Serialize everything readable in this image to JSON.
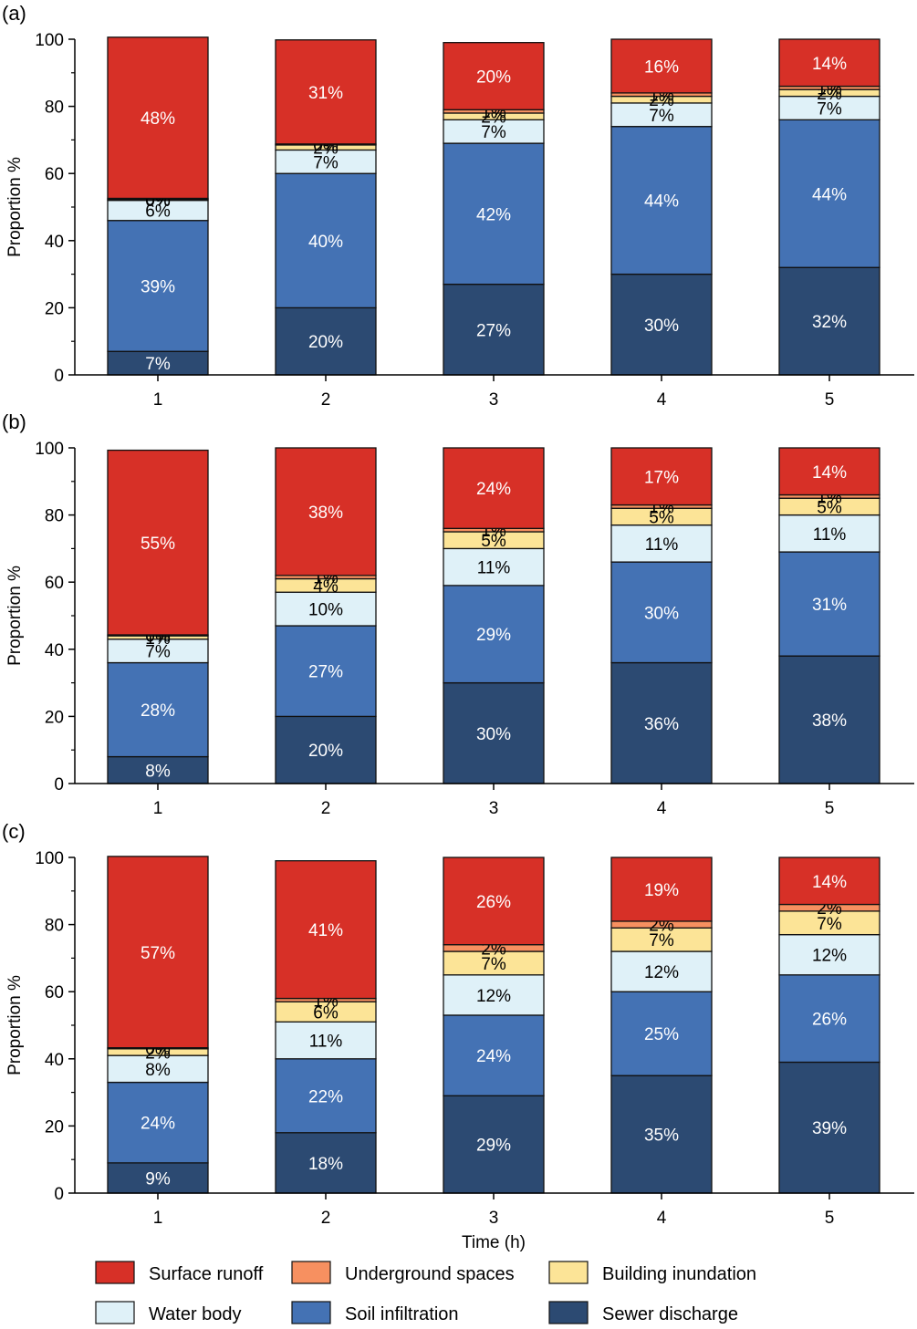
{
  "figure": {
    "xlabel": "Time (h)",
    "ylabel": "Proportion %"
  },
  "series_styles": [
    {
      "name": "Sewer discharge",
      "color": "#2c4a72",
      "label_color": "#ffffff"
    },
    {
      "name": "Soil infiltration",
      "color": "#4472b4",
      "label_color": "#ffffff"
    },
    {
      "name": "Water body",
      "color": "#dff1f8",
      "label_color": "#000000"
    },
    {
      "name": "Building  inundation",
      "color": "#fce497",
      "label_color": "#000000"
    },
    {
      "name": "Underground  spaces",
      "color": "#f79060",
      "label_color": "#000000"
    },
    {
      "name": "Surface runoff",
      "color": "#d73027",
      "label_color": "#ffffff"
    }
  ],
  "legend": {
    "rows": [
      [
        "Surface runoff",
        "Underground  spaces",
        "Building  inundation"
      ],
      [
        "Water body",
        "Soil infiltration",
        "Sewer discharge"
      ]
    ]
  },
  "chart_data": [
    {
      "type": "bar",
      "stacked": true,
      "panel_label": "(a)",
      "categories": [
        "1",
        "2",
        "3",
        "4",
        "5"
      ],
      "ylim": [
        0,
        100
      ],
      "yticks": [
        0,
        20,
        40,
        60,
        80,
        100
      ],
      "series": [
        {
          "name": "Sewer discharge",
          "values": [
            7,
            20,
            27,
            30,
            32
          ],
          "labels": [
            "7%",
            "20%",
            "27%",
            "30%",
            "32%"
          ]
        },
        {
          "name": "Soil infiltration",
          "values": [
            39,
            40,
            42,
            44,
            44
          ],
          "labels": [
            "39%",
            "40%",
            "42%",
            "44%",
            "44%"
          ]
        },
        {
          "name": "Water body",
          "values": [
            6,
            7,
            7,
            7,
            7
          ],
          "labels": [
            "6%",
            "7%",
            "7%",
            "7%",
            "7%"
          ]
        },
        {
          "name": "Building  inundation",
          "values": [
            0.3,
            1.5,
            2,
            2,
            2
          ],
          "labels": [
            "0%",
            "2%",
            "2%",
            "2%",
            "2%"
          ]
        },
        {
          "name": "Underground  spaces",
          "values": [
            0.3,
            0.3,
            1,
            1,
            1
          ],
          "labels": [
            "0%",
            "0%",
            "1%",
            "1%",
            "1%"
          ]
        },
        {
          "name": "Surface runoff",
          "values": [
            48,
            31,
            20,
            16,
            14
          ],
          "labels": [
            "48%",
            "31%",
            "20%",
            "16%",
            "14%"
          ]
        }
      ]
    },
    {
      "type": "bar",
      "stacked": true,
      "panel_label": "(b)",
      "categories": [
        "1",
        "2",
        "3",
        "4",
        "5"
      ],
      "ylim": [
        0,
        100
      ],
      "yticks": [
        0,
        20,
        40,
        60,
        80,
        100
      ],
      "series": [
        {
          "name": "Sewer discharge",
          "values": [
            8,
            20,
            30,
            36,
            38
          ],
          "labels": [
            "8%",
            "20%",
            "30%",
            "36%",
            "38%"
          ]
        },
        {
          "name": "Soil infiltration",
          "values": [
            28,
            27,
            29,
            30,
            31
          ],
          "labels": [
            "28%",
            "27%",
            "29%",
            "30%",
            "31%"
          ]
        },
        {
          "name": "Water body",
          "values": [
            7,
            10,
            11,
            11,
            11
          ],
          "labels": [
            "7%",
            "10%",
            "11%",
            "11%",
            "11%"
          ]
        },
        {
          "name": "Building  inundation",
          "values": [
            1,
            4,
            5,
            5,
            5
          ],
          "labels": [
            "1%",
            "4%",
            "5%",
            "5%",
            "5%"
          ]
        },
        {
          "name": "Underground  spaces",
          "values": [
            0.3,
            1,
            1,
            1,
            1
          ],
          "labels": [
            "0%",
            "1%",
            "1%",
            "1%",
            "1%"
          ]
        },
        {
          "name": "Surface runoff",
          "values": [
            55,
            38,
            24,
            17,
            14
          ],
          "labels": [
            "55%",
            "38%",
            "24%",
            "17%",
            "14%"
          ]
        }
      ]
    },
    {
      "type": "bar",
      "stacked": true,
      "panel_label": "(c)",
      "categories": [
        "1",
        "2",
        "3",
        "4",
        "5"
      ],
      "ylim": [
        0,
        100
      ],
      "yticks": [
        0,
        20,
        40,
        60,
        80,
        100
      ],
      "series": [
        {
          "name": "Sewer discharge",
          "values": [
            9,
            18,
            29,
            35,
            39
          ],
          "labels": [
            "9%",
            "18%",
            "29%",
            "35%",
            "39%"
          ]
        },
        {
          "name": "Soil infiltration",
          "values": [
            24,
            22,
            24,
            25,
            26
          ],
          "labels": [
            "24%",
            "22%",
            "24%",
            "25%",
            "26%"
          ]
        },
        {
          "name": "Water body",
          "values": [
            8,
            11,
            12,
            12,
            12
          ],
          "labels": [
            "8%",
            "11%",
            "12%",
            "12%",
            "12%"
          ]
        },
        {
          "name": "Building  inundation",
          "values": [
            2,
            6,
            7,
            7,
            7
          ],
          "labels": [
            "2%",
            "6%",
            "7%",
            "7%",
            "7%"
          ]
        },
        {
          "name": "Underground  spaces",
          "values": [
            0.3,
            1,
            2,
            2,
            2
          ],
          "labels": [
            "0%",
            "1%",
            "2%",
            "2%",
            "2%"
          ]
        },
        {
          "name": "Surface runoff",
          "values": [
            57,
            41,
            26,
            19,
            14
          ],
          "labels": [
            "57%",
            "41%",
            "26%",
            "19%",
            "14%"
          ]
        }
      ]
    }
  ]
}
